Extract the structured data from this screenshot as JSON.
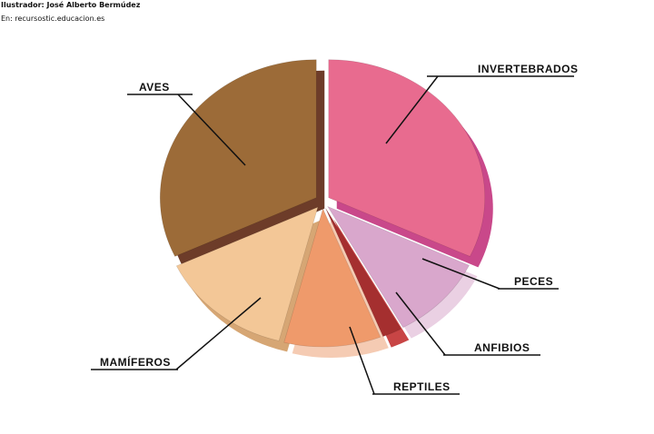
{
  "credits": {
    "illustrator": "Ilustrador: José Alberto Bermúdez",
    "source": "En: recursostic.educacion.es"
  },
  "chart_data": {
    "type": "pie",
    "style": "exploded 3D pie, labels with leader lines, no legend",
    "slices": [
      {
        "label": "INVERTEBRADOS",
        "value": 32,
        "color": "#e86b8f",
        "side_color": "#c9488a"
      },
      {
        "label": "PECES",
        "value": 10,
        "color": "#d9a7cc",
        "side_color": "#ead0e3"
      },
      {
        "label": "ANFIBIOS",
        "value": 2,
        "color": "#a52f2f",
        "side_color": "#c84545"
      },
      {
        "label": "REPTILES",
        "value": 10,
        "color": "#ef9a6b",
        "side_color": "#f5cbb3"
      },
      {
        "label": "MAMÍFEROS",
        "value": 14,
        "color": "#f3c797",
        "side_color": "#d6a674"
      },
      {
        "label": "AVES",
        "value": 32,
        "color": "#9c6b38",
        "side_color": "#6d3c29"
      }
    ]
  }
}
